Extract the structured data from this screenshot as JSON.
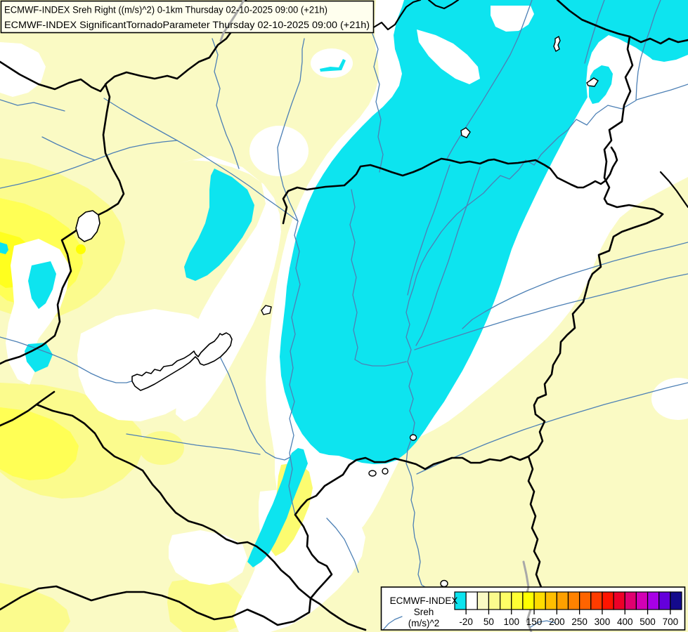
{
  "title": {
    "line1": "ECMWF-INDEX Sreh Right ((m/s)^2) 0-1km Thursday 02-10-2025 09:00 (+21h)",
    "line2": "ECMWF-INDEX SignificantTornadoParameter Thursday 02-10-2025 09:00 (+21h)"
  },
  "legend": {
    "label_line1": "ECMWF-INDEX",
    "label_line2": "Sreh",
    "label_line3": "(m/s)^2",
    "ticks": [
      "-20",
      "50",
      "100",
      "150",
      "200",
      "250",
      "300",
      "400",
      "500",
      "700"
    ],
    "swatch_colors": [
      "#0DE4EF",
      "#FFFFFF",
      "#FAFAC4",
      "#FBFB8D",
      "#FFFF66",
      "#FFFF33",
      "#FFFF00",
      "#FFDC00",
      "#FFBE00",
      "#FFA000",
      "#FF8200",
      "#FF6400",
      "#FF3C00",
      "#FF1400",
      "#EE0028",
      "#E00070",
      "#D200B4",
      "#A800E6",
      "#6400DC",
      "#140A8C"
    ]
  },
  "colors": {
    "background": "#FAFAC4",
    "white_region": "#FFFFFF",
    "cyan_region": "#0DE4EF",
    "yellow_light": "#FBFB8D",
    "yellow_bright": "#FFFF55",
    "yellow_intense": "#FFFF1E",
    "yellow_pure": "#FFFF00",
    "yellow_mid": "#FCFC70",
    "river": "#4D80B5",
    "major_river": "#A9A9A9",
    "border": "#000000",
    "text": "#000000",
    "title_box_bg": "#FFFFEE",
    "legend_box_bg": "#FFFFFF"
  }
}
